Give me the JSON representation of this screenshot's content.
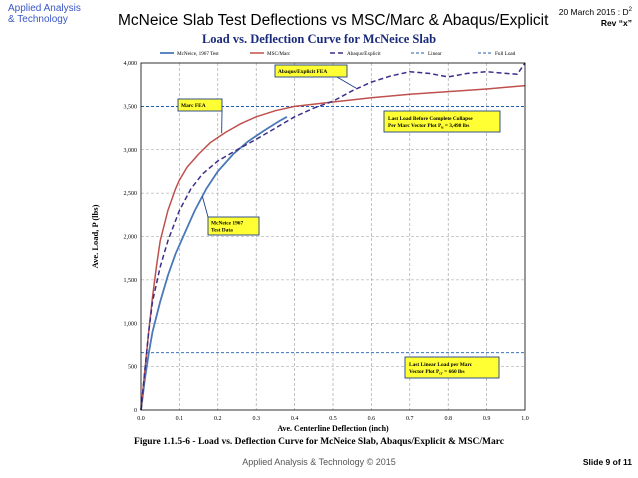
{
  "header": {
    "logo_line1": "Applied Analysis",
    "logo_line2": "& Technology",
    "slide_title": "McNeice Slab Test Deflections vs MSC/Marc & Abaqus/Explicit",
    "date": "20 March 2015 : D",
    "date_sup": "2",
    "rev": "Rev “x”"
  },
  "footer": {
    "copyright": "Applied Analysis & Technology © 2015",
    "slide_number": "Slide 9 of 11"
  },
  "figure_caption": "Figure 1.1.5-6 - Load vs.  Deflection Curve for McNeice Slab, Abaqus/Explicit & MSC/Marc",
  "colors": {
    "test": "#4a78b8",
    "marc": "#c0504d",
    "abaqus": "#3b2e8a",
    "ref_lines": "#1f5fae",
    "callout_fill": "#ffff33",
    "callout_border": "#1f3f8a",
    "logo": "#3a56c8"
  },
  "chart_data": {
    "type": "line",
    "title": "Load vs. Deflection Curve for McNeice Slab",
    "xlabel": "Ave. Centerline Deflection (inch)",
    "ylabel": "Ave. Load, P (lbs)",
    "xlim": [
      0,
      1.0
    ],
    "ylim": [
      0,
      4000
    ],
    "x_ticks": [
      "0.0",
      "0.1",
      "0.2",
      "0.3",
      "0.4",
      "0.5",
      "0.6",
      "0.7",
      "0.8",
      "0.9",
      "1.0"
    ],
    "y_ticks": [
      "0",
      "500",
      "1,000",
      "1,500",
      "2,000",
      "2,500",
      "3,000",
      "3,500",
      "4,000"
    ],
    "grid": true,
    "legend_position": "top",
    "series": [
      {
        "name": "McNeice, 1967 Test",
        "style": "solid",
        "x": [
          0,
          0.01,
          0.02,
          0.03,
          0.05,
          0.07,
          0.09,
          0.11,
          0.14,
          0.17,
          0.2,
          0.24,
          0.28,
          0.32,
          0.36,
          0.38
        ],
        "y": [
          0,
          350,
          650,
          900,
          1250,
          1550,
          1800,
          2000,
          2300,
          2550,
          2750,
          2950,
          3100,
          3220,
          3330,
          3380
        ]
      },
      {
        "name": "MSC/Marc",
        "style": "solid",
        "x": [
          0,
          0.01,
          0.02,
          0.03,
          0.04,
          0.05,
          0.07,
          0.09,
          0.1,
          0.12,
          0.15,
          0.18,
          0.22,
          0.26,
          0.3,
          0.35,
          0.4,
          0.5,
          0.6,
          0.7,
          0.8,
          0.9,
          1.0
        ],
        "y": [
          0,
          450,
          900,
          1300,
          1650,
          1950,
          2300,
          2550,
          2650,
          2800,
          2950,
          3080,
          3200,
          3300,
          3380,
          3450,
          3500,
          3550,
          3600,
          3640,
          3670,
          3700,
          3740
        ]
      },
      {
        "name": "Abaqus/Explicit",
        "style": "dashed",
        "x": [
          0,
          0.01,
          0.02,
          0.03,
          0.05,
          0.07,
          0.1,
          0.13,
          0.16,
          0.2,
          0.25,
          0.3,
          0.35,
          0.4,
          0.45,
          0.5,
          0.55,
          0.6,
          0.65,
          0.7,
          0.75,
          0.8,
          0.85,
          0.9,
          0.95,
          0.98,
          1.0
        ],
        "y": [
          0,
          450,
          900,
          1250,
          1650,
          1950,
          2300,
          2550,
          2720,
          2870,
          3000,
          3120,
          3250,
          3380,
          3480,
          3560,
          3680,
          3780,
          3850,
          3900,
          3880,
          3840,
          3880,
          3900,
          3880,
          3870,
          4000
        ]
      },
      {
        "name": "Linear",
        "style": "dashed-ref",
        "x": [
          0,
          1.0
        ],
        "y": [
          660,
          660
        ]
      },
      {
        "name": "Full Load",
        "style": "dashed-ref",
        "x": [
          0,
          1.0
        ],
        "y": [
          3498,
          3498
        ]
      }
    ],
    "annotations": [
      {
        "id": "abaqus",
        "lines": [
          "Abaqus/Explicit FEA"
        ],
        "point_x": 0.56,
        "point_y": 3710
      },
      {
        "id": "marc",
        "lines": [
          "Marc FEA"
        ],
        "point_x": 0.21,
        "point_y": 3190
      },
      {
        "id": "test",
        "lines": [
          "McNeice 1967",
          "Test Data"
        ],
        "point_x": 0.16,
        "point_y": 2460
      },
      {
        "id": "fullload",
        "lines": [
          "Last Load Before Complete Collapse",
          "Per Marc Vector Plot P",
          "= 3,498 lbs"
        ],
        "sub": "u"
      },
      {
        "id": "linear",
        "lines": [
          "Last Linear Load per Marc",
          "Vector Plot P",
          "= 660 lbs"
        ],
        "sub": "cr"
      }
    ]
  }
}
